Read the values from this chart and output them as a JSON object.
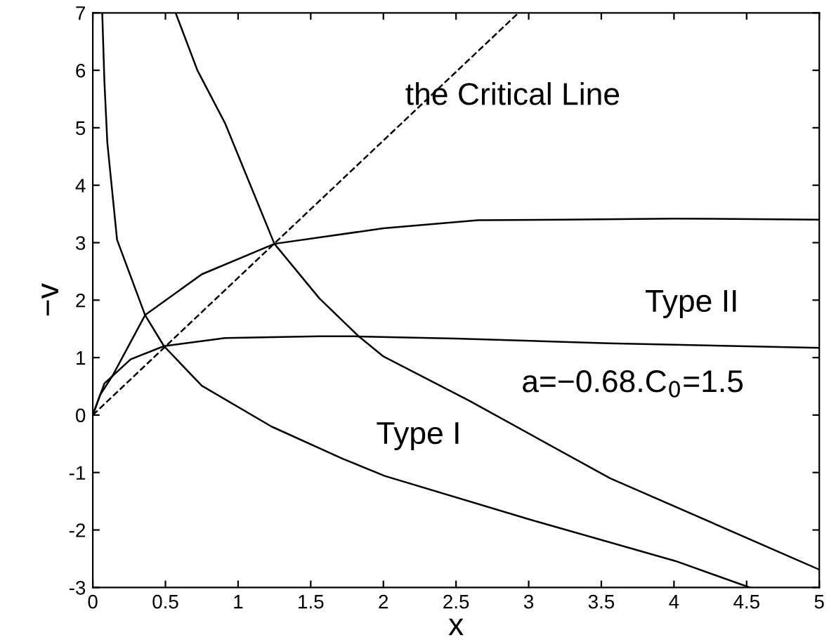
{
  "chart_data": {
    "type": "line",
    "xlabel": "x",
    "ylabel": "−v",
    "xlim": [
      0,
      5
    ],
    "ylim": [
      -3,
      7
    ],
    "xticks": [
      0,
      0.5,
      1,
      1.5,
      2,
      2.5,
      3,
      3.5,
      4,
      4.5,
      5
    ],
    "yticks": [
      -3,
      -2,
      -1,
      0,
      1,
      2,
      3,
      4,
      5,
      6,
      7
    ],
    "grid": false,
    "marker": "none",
    "annotations": [
      "the Critical Line",
      "Type II",
      "Type I",
      "a=−0.68.C$_{0}$=1.5"
    ],
    "series": [
      {
        "color": "#000000",
        "line_style": "dashed",
        "x": [
          0,
          2.93
        ],
        "values": [
          0,
          7
        ]
      },
      {
        "color": "#000000",
        "line_style": "solid",
        "x": [
          0,
          0.05,
          0.135,
          0.36,
          0.75,
          1.25,
          2.0,
          2.65,
          3.23,
          4.0,
          5.0
        ],
        "values": [
          0,
          0.35,
          0.68,
          1.74,
          2.45,
          2.98,
          3.25,
          3.39,
          3.4,
          3.42,
          3.4
        ]
      },
      {
        "color": "#000000",
        "line_style": "solid",
        "x": [
          0,
          0.08,
          0.26,
          0.49,
          0.91,
          1.56,
          1.8,
          2.5,
          3.55,
          5.0
        ],
        "values": [
          0,
          0.55,
          0.97,
          1.2,
          1.34,
          1.37,
          1.37,
          1.33,
          1.25,
          1.17
        ]
      },
      {
        "color": "#000000",
        "line_style": "solid",
        "x": [
          0.065,
          0.08,
          0.1,
          0.167,
          0.36,
          0.49,
          0.75,
          1.23,
          1.72,
          2.01,
          3.01,
          4.01,
          4.52
        ],
        "values": [
          7,
          5.8,
          4.74,
          3.05,
          1.74,
          1.2,
          0.51,
          -0.2,
          -0.76,
          -1.06,
          -1.82,
          -2.54,
          -3.0
        ]
      },
      {
        "color": "#000000",
        "line_style": "solid",
        "x": [
          0.57,
          0.72,
          0.91,
          1.25,
          1.56,
          1.83,
          2.0,
          2.59,
          3.56,
          5.0
        ],
        "values": [
          7,
          6.0,
          5.08,
          2.98,
          2.03,
          1.37,
          1.02,
          0.25,
          -1.1,
          -2.69
        ]
      }
    ]
  }
}
